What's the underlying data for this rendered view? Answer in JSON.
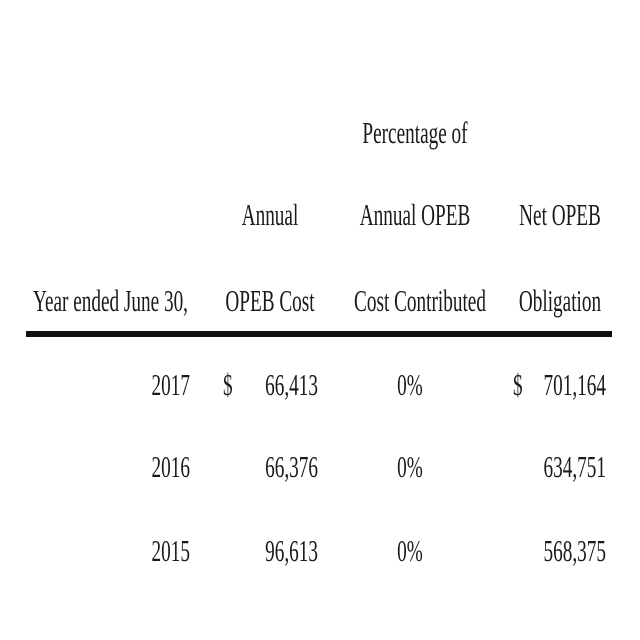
{
  "table": {
    "headers": {
      "year": "Year ended June 30,",
      "annual_cost_line1": "Annual",
      "annual_cost_line2": "OPEB Cost",
      "pct_line1": "Percentage of",
      "pct_line2": "Annual OPEB",
      "pct_line3": "Cost Contributed",
      "net_line1": "Net OPEB",
      "net_line2": "Obligation"
    },
    "currency_symbol": "$",
    "rows": [
      {
        "year": "2017",
        "annual_cost": "66,413",
        "pct": "0%",
        "net": "701,164",
        "show_currency": true
      },
      {
        "year": "2016",
        "annual_cost": "66,376",
        "pct": "0%",
        "net": "634,751",
        "show_currency": false
      },
      {
        "year": "2015",
        "annual_cost": "96,613",
        "pct": "0%",
        "net": "568,375",
        "show_currency": false
      }
    ]
  }
}
